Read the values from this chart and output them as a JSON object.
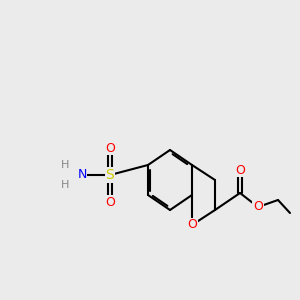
{
  "background_color": "#ebebeb",
  "bond_color": "#000000",
  "bond_width": 1.5,
  "atom_colors": {
    "O": "#ff0000",
    "N": "#0000ff",
    "S": "#cccc00",
    "H": "#888888",
    "C": "#000000"
  },
  "font_size": 9
}
